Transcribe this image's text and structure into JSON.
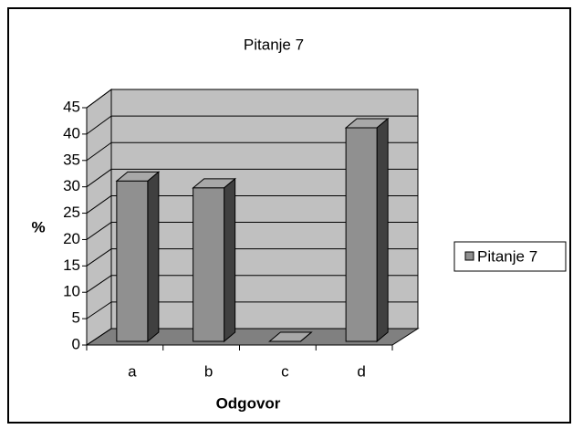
{
  "chart_data": {
    "type": "bar3d",
    "title": "Pitanje 7",
    "x_label": "Odgovor",
    "y_label": "%",
    "categories": [
      "a",
      "b",
      "c",
      "d"
    ],
    "series": [
      {
        "name": "Pitanje 7",
        "color": "#909090",
        "values": [
          30.4,
          29.1,
          0,
          40.5
        ]
      }
    ],
    "ylim": [
      0,
      45
    ],
    "yticks": [
      0,
      5,
      10,
      15,
      20,
      25,
      30,
      35,
      40,
      45
    ],
    "grid": true,
    "legend": "right"
  }
}
